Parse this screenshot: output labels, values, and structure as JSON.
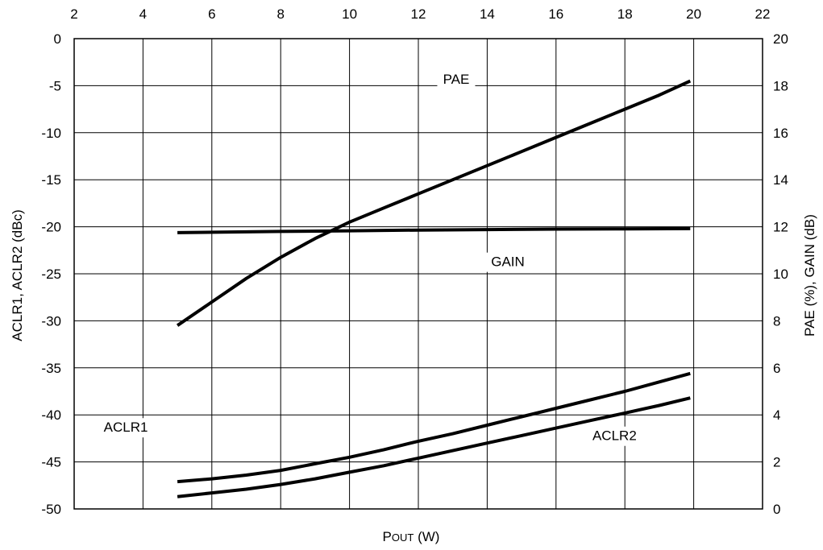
{
  "chart_data": {
    "type": "line",
    "title": "",
    "xlabel_main": "P",
    "xlabel_small": "OUT",
    "xlabel_unit": " (W)",
    "ylabel_left": "ACLR1, ACLR2 (dBc)",
    "ylabel_right": "PAE (%), GAIN (dB)",
    "xlim": [
      2,
      22
    ],
    "ylim_left": [
      -50,
      0
    ],
    "ylim_right": [
      0,
      20
    ],
    "x_ticks": [
      2,
      4,
      6,
      8,
      10,
      12,
      14,
      16,
      18,
      20,
      22
    ],
    "y_left_ticks": [
      0,
      -5,
      -10,
      -15,
      -20,
      -25,
      -30,
      -35,
      -40,
      -45,
      -50
    ],
    "y_right_ticks": [
      20,
      18,
      16,
      14,
      12,
      10,
      8,
      6,
      4,
      2,
      0
    ],
    "grid": true,
    "series": [
      {
        "name": "PAE",
        "axis": "right",
        "x": [
          5,
          6,
          7,
          8,
          9,
          10,
          11,
          12,
          13,
          14,
          15,
          16,
          17,
          18,
          19,
          19.9
        ],
        "y": [
          7.8,
          8.8,
          9.8,
          10.7,
          11.5,
          12.2,
          12.8,
          13.4,
          14.0,
          14.6,
          15.2,
          15.8,
          16.4,
          17.0,
          17.6,
          18.2
        ]
      },
      {
        "name": "GAIN",
        "axis": "right",
        "x": [
          5,
          8,
          10,
          12,
          14,
          16,
          18,
          19.9
        ],
        "y": [
          11.75,
          11.8,
          11.83,
          11.86,
          11.88,
          11.9,
          11.91,
          11.92
        ]
      },
      {
        "name": "ACLR1",
        "axis": "left",
        "x": [
          5,
          6,
          7,
          8,
          9,
          10,
          11,
          12,
          13,
          14,
          15,
          16,
          17,
          18,
          19,
          19.9
        ],
        "y": [
          -47.1,
          -46.8,
          -46.4,
          -45.9,
          -45.2,
          -44.5,
          -43.7,
          -42.8,
          -42.0,
          -41.1,
          -40.2,
          -39.3,
          -38.4,
          -37.5,
          -36.5,
          -35.6
        ]
      },
      {
        "name": "ACLR2",
        "axis": "left",
        "x": [
          5,
          6,
          7,
          8,
          9,
          10,
          11,
          12,
          13,
          14,
          15,
          16,
          17,
          18,
          19,
          19.9
        ],
        "y": [
          -48.7,
          -48.3,
          -47.9,
          -47.4,
          -46.8,
          -46.1,
          -45.4,
          -44.6,
          -43.8,
          -43.0,
          -42.2,
          -41.4,
          -40.6,
          -39.8,
          -39.0,
          -38.2
        ]
      }
    ],
    "annotations": [
      {
        "text": "PAE",
        "x": 13.1,
        "y_left": -4.8
      },
      {
        "text": "GAIN",
        "x": 14.6,
        "y_left": -24.2
      },
      {
        "text": "ACLR1",
        "x": 3.5,
        "y_left": -41.8
      },
      {
        "text": "ACLR2",
        "x": 17.7,
        "y_left": -42.7
      }
    ]
  }
}
